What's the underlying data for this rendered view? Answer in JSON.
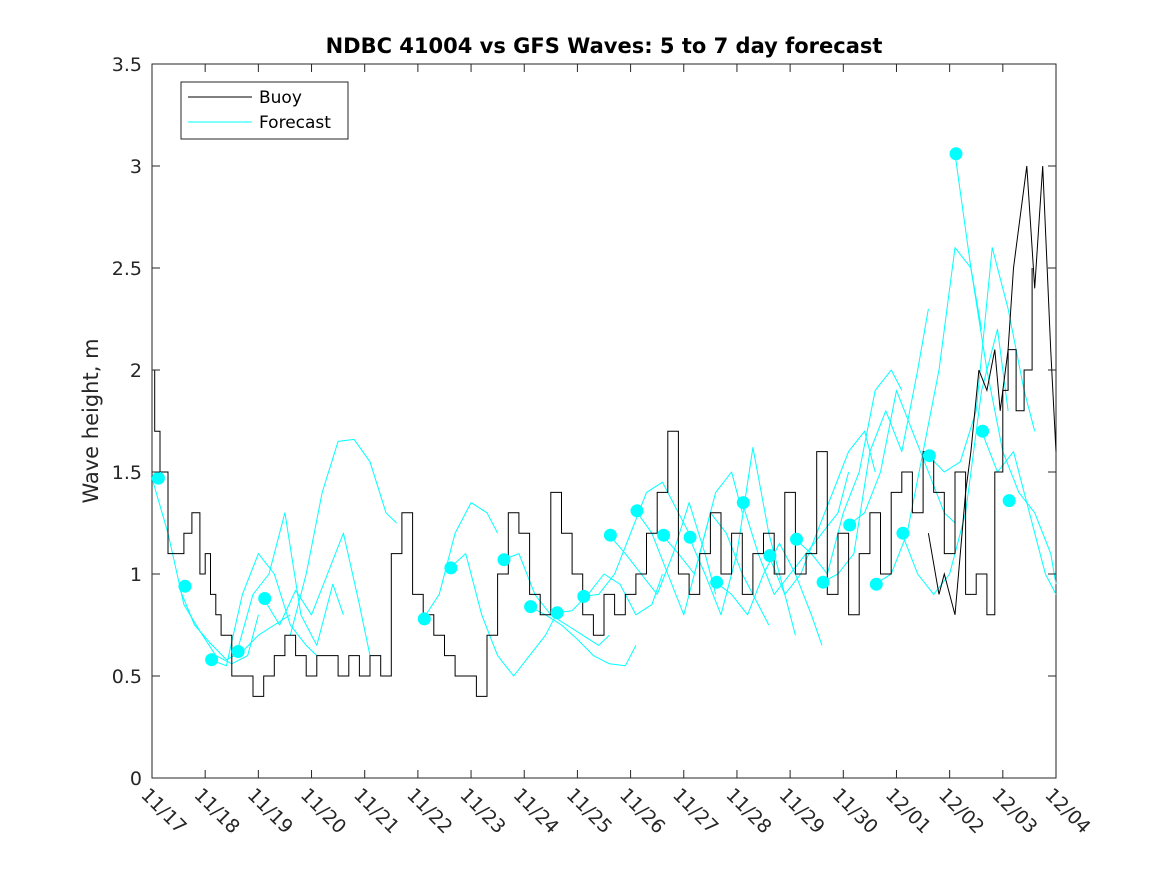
{
  "chart_data": {
    "type": "line",
    "title": "NDBC 41004 vs GFS Waves: 5 to 7 day forecast",
    "xlabel": "",
    "ylabel": "Wave height, m",
    "ylim": [
      0,
      3.5
    ],
    "xlim": [
      0,
      17
    ],
    "yticks": [
      0,
      0.5,
      1,
      1.5,
      2,
      2.5,
      3,
      3.5
    ],
    "ytick_labels": [
      "0",
      "0.5",
      "1",
      "1.5",
      "2",
      "2.5",
      "3",
      "3.5"
    ],
    "xtick_labels": [
      "11/17",
      "11/18",
      "11/19",
      "11/20",
      "11/21",
      "11/22",
      "11/23",
      "11/24",
      "11/25",
      "11/26",
      "11/27",
      "11/28",
      "11/29",
      "11/30",
      "12/01",
      "12/02",
      "12/03",
      "12/04"
    ],
    "colors": {
      "buoy": "#000000",
      "forecast": "#00ffff",
      "axis": "#262626"
    },
    "legend": {
      "location": "top-left",
      "entries": [
        {
          "label": "Buoy",
          "color": "#000000"
        },
        {
          "label": "Forecast",
          "color": "#00ffff"
        }
      ]
    },
    "series": [
      {
        "name": "Buoy",
        "color": "#000000",
        "x": [
          0,
          0.05,
          0.15,
          0.3,
          0.45,
          0.6,
          0.75,
          0.9,
          1.0,
          1.1,
          1.2,
          1.3,
          1.5,
          1.7,
          1.9,
          2.1,
          2.3,
          2.5,
          2.7,
          2.9,
          3.1,
          3.3,
          3.5,
          3.7,
          3.9,
          4.1,
          4.3,
          4.5,
          4.7,
          4.9,
          5.1,
          5.3,
          5.5,
          5.7,
          5.9,
          6.1,
          6.3,
          6.5,
          6.7,
          6.9,
          7.1,
          7.3,
          7.5,
          7.7,
          7.9,
          8.1,
          8.3,
          8.5,
          8.7,
          8.9,
          9.1,
          9.3,
          9.5,
          9.7,
          9.9,
          10.1,
          10.3,
          10.5,
          10.7,
          10.9,
          11.1,
          11.3,
          11.5,
          11.7,
          11.9,
          12.1,
          12.3,
          12.5,
          12.7,
          12.9,
          13.1,
          13.3,
          13.5,
          13.7,
          13.9,
          14.1,
          14.3,
          14.5,
          14.7,
          14.9,
          15.1,
          15.3,
          15.5,
          15.7,
          15.85,
          16.0,
          16.1,
          16.25,
          16.4,
          16.55
        ],
        "values": [
          2.0,
          1.7,
          1.5,
          1.1,
          1.1,
          1.2,
          1.3,
          1.0,
          1.1,
          0.9,
          0.8,
          0.7,
          0.5,
          0.5,
          0.4,
          0.5,
          0.6,
          0.7,
          0.6,
          0.5,
          0.6,
          0.6,
          0.5,
          0.6,
          0.5,
          0.6,
          0.5,
          1.1,
          1.3,
          0.9,
          0.8,
          0.7,
          0.6,
          0.5,
          0.5,
          0.4,
          0.7,
          1.0,
          1.3,
          1.2,
          0.9,
          0.8,
          1.4,
          1.2,
          1.0,
          0.8,
          0.7,
          0.9,
          0.8,
          0.9,
          1.0,
          1.2,
          1.4,
          1.7,
          1.0,
          0.9,
          1.1,
          1.3,
          1.0,
          1.2,
          0.9,
          1.1,
          1.2,
          1.0,
          1.4,
          1.0,
          1.1,
          1.6,
          0.9,
          1.2,
          0.8,
          1.1,
          1.3,
          1.0,
          1.4,
          1.5,
          1.3,
          1.6,
          1.4,
          1.1,
          1.5,
          0.9,
          1.0,
          0.8,
          1.5,
          1.9,
          2.1,
          1.8,
          2.0,
          2.5
        ],
        "overlay_x": [
          14.6,
          14.8,
          14.9,
          15.1,
          15.3,
          15.4,
          15.55,
          15.7,
          15.85,
          15.95,
          16.1,
          16.2,
          16.3,
          16.45,
          16.6,
          16.75,
          16.9,
          17.0
        ],
        "overlay_values": [
          1.2,
          0.9,
          1.0,
          0.8,
          1.4,
          1.6,
          2.0,
          1.9,
          2.1,
          1.8,
          2.1,
          2.5,
          2.7,
          3.0,
          2.4,
          3.0,
          2.1,
          1.6
        ]
      },
      {
        "name": "Forecast",
        "color": "#00ffff",
        "segments": [
          {
            "x": [
              0.0,
              0.3,
              0.6,
              0.9,
              1.2,
              1.5,
              1.8,
              2.0
            ],
            "values": [
              1.47,
              1.2,
              0.85,
              0.72,
              0.6,
              0.56,
              0.6,
              0.8
            ]
          },
          {
            "x": [
              0.5,
              0.8,
              1.1,
              1.4,
              1.7,
              2.0,
              2.3,
              2.6
            ],
            "values": [
              0.94,
              0.75,
              0.66,
              0.58,
              0.62,
              0.7,
              0.75,
              0.8
            ]
          },
          {
            "x": [
              1.1,
              1.4,
              1.7,
              2.0,
              2.3,
              2.6,
              2.9,
              3.1
            ],
            "values": [
              0.58,
              0.55,
              0.9,
              1.1,
              1.0,
              0.75,
              0.65,
              0.6
            ]
          },
          {
            "x": [
              1.6,
              1.9,
              2.2,
              2.5,
              2.8,
              3.1,
              3.4,
              3.6
            ],
            "values": [
              0.62,
              0.9,
              1.0,
              1.3,
              0.8,
              0.65,
              0.95,
              0.8
            ]
          },
          {
            "x": [
              2.1,
              2.4,
              2.7,
              3.0,
              3.3,
              3.6,
              3.9,
              4.1
            ],
            "values": [
              0.88,
              0.75,
              0.92,
              0.8,
              1.0,
              1.2,
              0.85,
              0.6
            ]
          },
          {
            "x": [
              2.6,
              2.9,
              3.2,
              3.5,
              3.8,
              4.1,
              4.4,
              4.6
            ],
            "values": [
              0.7,
              1.0,
              1.4,
              1.65,
              1.66,
              1.55,
              1.3,
              1.25
            ]
          },
          {
            "x": [
              5.1,
              5.4,
              5.7,
              6.0,
              6.3,
              6.5
            ],
            "values": [
              0.78,
              0.9,
              1.2,
              1.35,
              1.3,
              1.2
            ]
          },
          {
            "x": [
              5.6,
              5.9,
              6.2,
              6.5,
              6.8,
              7.1,
              7.4,
              7.6
            ],
            "values": [
              1.03,
              1.1,
              0.8,
              0.6,
              0.5,
              0.6,
              0.7,
              0.8
            ]
          },
          {
            "x": [
              6.6,
              6.9,
              7.2,
              7.5,
              7.8,
              8.1,
              8.4,
              8.6
            ],
            "values": [
              1.07,
              1.1,
              0.9,
              0.8,
              0.75,
              0.7,
              0.65,
              0.7
            ]
          },
          {
            "x": [
              7.1,
              7.4,
              7.7,
              8.0,
              8.3,
              8.6,
              8.9,
              9.1
            ],
            "values": [
              0.84,
              0.8,
              0.75,
              0.68,
              0.6,
              0.56,
              0.55,
              0.65
            ]
          },
          {
            "x": [
              7.6,
              7.9,
              8.2,
              8.5,
              8.8,
              9.1,
              9.4,
              9.6
            ],
            "values": [
              0.81,
              0.82,
              0.9,
              1.0,
              0.95,
              0.8,
              0.85,
              1.0
            ]
          },
          {
            "x": [
              8.1,
              8.4,
              8.7,
              9.0,
              9.3,
              9.6,
              9.9,
              10.1
            ],
            "values": [
              0.89,
              0.9,
              1.0,
              1.2,
              1.4,
              1.45,
              1.3,
              1.2
            ]
          },
          {
            "x": [
              8.6,
              8.9,
              9.2,
              9.5,
              9.8,
              10.1,
              10.4,
              10.6
            ],
            "values": [
              1.19,
              1.1,
              1.0,
              0.9,
              1.1,
              1.35,
              1.1,
              0.9
            ]
          },
          {
            "x": [
              9.1,
              9.4,
              9.7,
              10.0,
              10.3,
              10.6,
              10.9,
              11.1
            ],
            "values": [
              1.31,
              1.2,
              1.0,
              0.8,
              1.1,
              1.4,
              1.5,
              1.3
            ]
          },
          {
            "x": [
              9.6,
              9.9,
              10.2,
              10.5,
              10.8,
              11.1,
              11.4,
              11.6
            ],
            "values": [
              1.19,
              1.1,
              1.0,
              1.3,
              1.2,
              1.0,
              0.85,
              0.75
            ]
          },
          {
            "x": [
              10.1,
              10.4,
              10.7,
              11.0,
              11.3,
              11.6,
              11.9,
              12.1
            ],
            "values": [
              1.18,
              1.0,
              0.8,
              1.1,
              1.62,
              1.2,
              0.9,
              0.7
            ]
          },
          {
            "x": [
              10.6,
              10.9,
              11.2,
              11.5,
              11.8,
              12.1,
              12.4,
              12.6
            ],
            "values": [
              0.96,
              0.9,
              0.8,
              1.0,
              1.15,
              1.0,
              0.8,
              0.65
            ]
          },
          {
            "x": [
              11.1,
              11.4,
              11.7,
              12.0,
              12.3,
              12.6,
              12.9,
              13.1
            ],
            "values": [
              1.35,
              1.1,
              0.9,
              1.0,
              1.1,
              1.2,
              1.3,
              1.5
            ]
          },
          {
            "x": [
              11.6,
              11.9,
              12.2,
              12.5,
              12.8,
              13.1,
              13.4,
              13.6
            ],
            "values": [
              1.09,
              0.9,
              1.0,
              1.2,
              1.4,
              1.6,
              1.7,
              1.5
            ]
          },
          {
            "x": [
              12.1,
              12.4,
              12.7,
              13.0,
              13.3,
              13.6,
              13.9,
              14.1
            ],
            "values": [
              1.17,
              1.1,
              1.0,
              1.3,
              1.5,
              1.9,
              2.0,
              1.9
            ]
          },
          {
            "x": [
              12.6,
              12.9,
              13.2,
              13.5,
              13.8,
              14.1,
              14.4,
              14.6
            ],
            "values": [
              0.96,
              1.0,
              1.1,
              1.6,
              1.8,
              1.6,
              2.0,
              2.3
            ]
          },
          {
            "x": [
              13.1,
              13.4,
              13.7,
              14.0,
              14.3,
              14.6,
              14.9,
              15.1
            ],
            "values": [
              1.24,
              1.3,
              1.5,
              1.9,
              1.7,
              1.5,
              1.3,
              1.25
            ]
          },
          {
            "x": [
              13.6,
              13.9,
              14.2,
              14.5,
              14.8,
              15.1,
              15.4,
              15.6
            ],
            "values": [
              0.95,
              1.0,
              1.2,
              1.6,
              2.0,
              2.6,
              2.5,
              2.2
            ]
          },
          {
            "x": [
              14.1,
              14.4,
              14.7,
              15.0,
              15.3,
              15.6,
              15.9,
              16.1
            ],
            "values": [
              1.2,
              1.0,
              0.9,
              1.0,
              1.3,
              1.9,
              2.2,
              1.8
            ]
          },
          {
            "x": [
              14.6,
              14.9,
              15.2,
              15.5,
              15.8,
              16.1,
              16.4,
              16.6
            ],
            "values": [
              1.58,
              1.5,
              1.55,
              1.8,
              2.6,
              2.3,
              1.9,
              1.7
            ]
          },
          {
            "x": [
              15.1,
              15.4,
              15.7,
              16.0,
              16.3,
              16.6,
              16.9,
              17.0
            ],
            "values": [
              3.06,
              2.5,
              2.0,
              1.6,
              1.4,
              1.3,
              1.1,
              0.95
            ]
          },
          {
            "x": [
              15.6,
              15.9,
              16.2,
              16.5,
              16.8,
              17.0
            ],
            "values": [
              1.7,
              1.5,
              1.6,
              1.3,
              1.0,
              0.9
            ]
          }
        ]
      },
      {
        "name": "Forecast markers",
        "color": "#00ffff",
        "x": [
          0.12,
          0.62,
          1.12,
          1.62,
          2.12,
          5.12,
          5.62,
          6.62,
          7.12,
          7.62,
          8.12,
          8.62,
          9.12,
          9.62,
          10.12,
          10.62,
          11.12,
          11.62,
          12.12,
          12.62,
          13.12,
          13.62,
          14.12,
          14.62,
          15.12,
          15.62,
          16.12
        ],
        "values": [
          1.47,
          0.94,
          0.58,
          0.62,
          0.88,
          0.78,
          1.03,
          1.07,
          0.84,
          0.81,
          0.89,
          1.19,
          1.31,
          1.19,
          1.18,
          0.96,
          1.35,
          1.09,
          1.17,
          0.96,
          1.24,
          0.95,
          1.2,
          1.58,
          3.06,
          1.7,
          1.36
        ]
      }
    ]
  }
}
